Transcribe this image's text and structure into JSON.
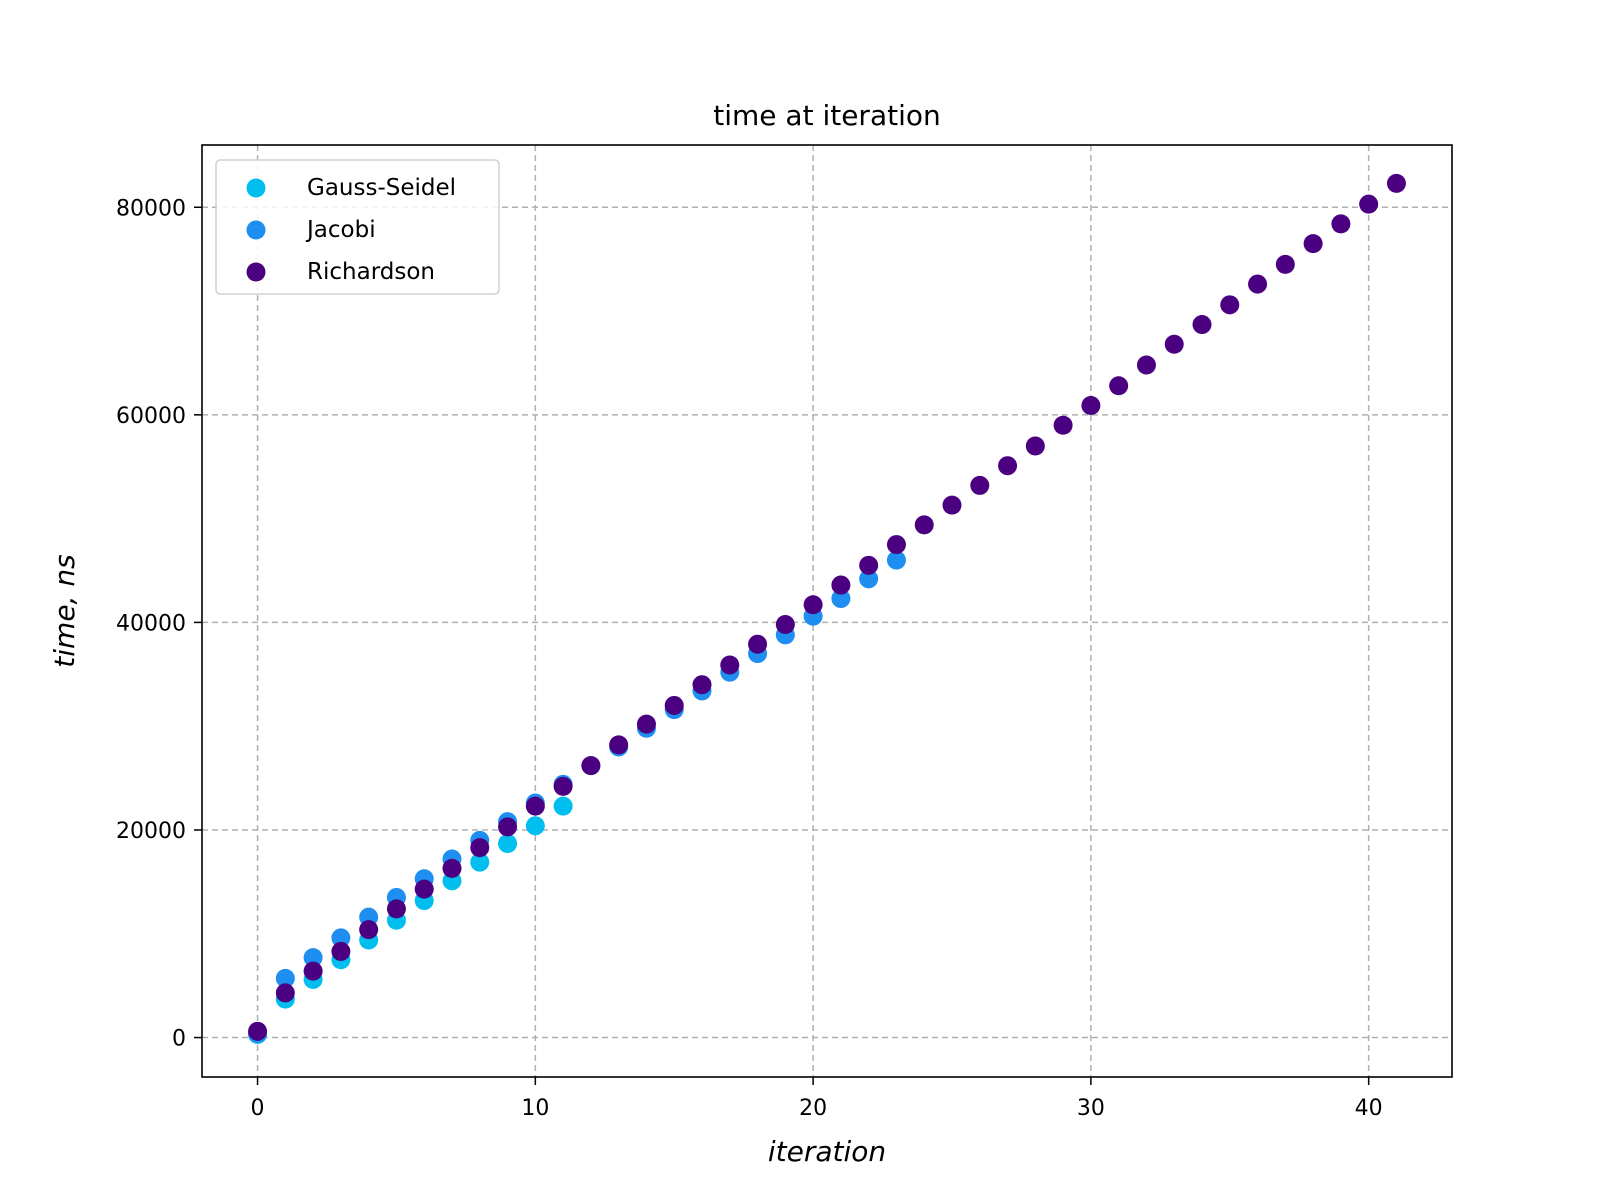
{
  "chart_data": {
    "type": "scatter",
    "title": "time at iteration",
    "xlabel": "iteration",
    "ylabel": "time, ns",
    "xlim": [
      -2,
      43
    ],
    "ylim": [
      -3800,
      86000
    ],
    "xticks": [
      0,
      10,
      20,
      30,
      40
    ],
    "yticks": [
      0,
      20000,
      40000,
      60000,
      80000
    ],
    "grid": true,
    "legend_position": "top-left",
    "series": [
      {
        "name": "Gauss-Seidel",
        "color": "#00bfef",
        "x": [
          0,
          1,
          2,
          3,
          4,
          5,
          6,
          7,
          8,
          9,
          10,
          11
        ],
        "y": [
          300,
          3700,
          5600,
          7500,
          9400,
          11300,
          13200,
          15100,
          16900,
          18700,
          20400,
          22300
        ]
      },
      {
        "name": "Jacobi",
        "color": "#1e8ef0",
        "x": [
          0,
          1,
          2,
          3,
          4,
          5,
          6,
          7,
          8,
          9,
          10,
          11,
          12,
          13,
          14,
          15,
          16,
          17,
          18,
          19,
          20,
          21,
          22,
          23
        ],
        "y": [
          400,
          5700,
          7700,
          9600,
          11600,
          13500,
          15300,
          17200,
          19000,
          20800,
          22600,
          24400,
          26200,
          28000,
          29800,
          31600,
          33400,
          35200,
          37000,
          38800,
          40600,
          42300,
          44200,
          46000
        ]
      },
      {
        "name": "Richardson",
        "color": "#4b0082",
        "x": [
          0,
          1,
          2,
          3,
          4,
          5,
          6,
          7,
          8,
          9,
          10,
          11,
          12,
          13,
          14,
          15,
          16,
          17,
          18,
          19,
          20,
          21,
          22,
          23,
          24,
          25,
          26,
          27,
          28,
          29,
          30,
          31,
          32,
          33,
          34,
          35,
          36,
          37,
          38,
          39,
          40,
          41
        ],
        "y": [
          600,
          4300,
          6400,
          8300,
          10400,
          12400,
          14300,
          16300,
          18300,
          20300,
          22300,
          24200,
          26200,
          28200,
          30200,
          32000,
          34000,
          35900,
          37900,
          39800,
          41700,
          43600,
          45500,
          47500,
          49400,
          51300,
          53200,
          55100,
          57000,
          59000,
          60900,
          62800,
          64800,
          66800,
          68700,
          70600,
          72600,
          74500,
          76500,
          78400,
          80300,
          82300
        ]
      }
    ]
  }
}
